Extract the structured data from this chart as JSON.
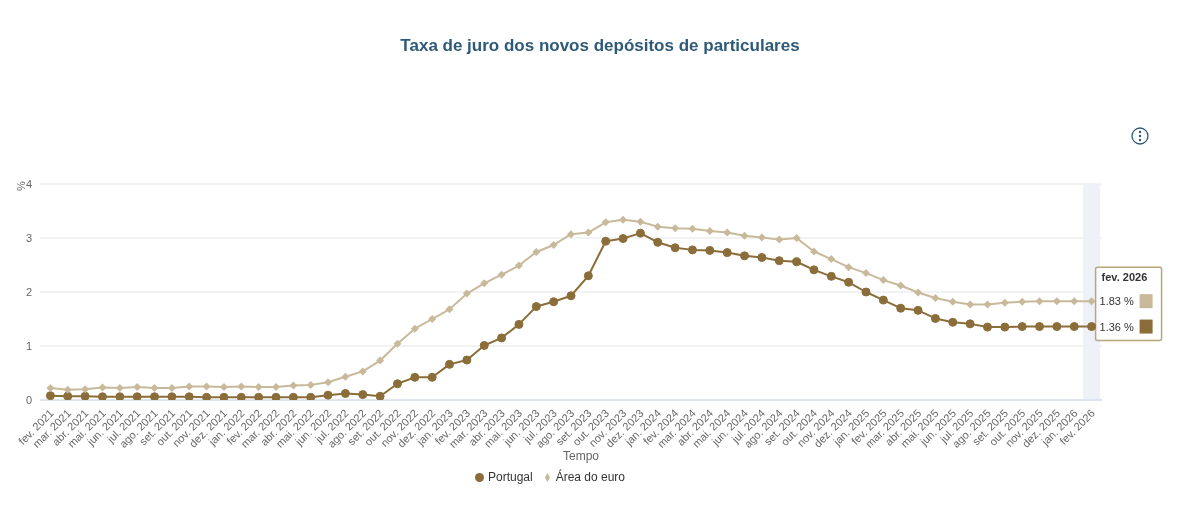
{
  "chart_data": {
    "type": "line",
    "title": "Taxa de juro dos novos depósitos de particulares",
    "xlabel": "Tempo",
    "ylabel": "%",
    "categories": [
      "fev. 2021",
      "mar. 2021",
      "abr. 2021",
      "mai. 2021",
      "jun. 2021",
      "jul. 2021",
      "ago. 2021",
      "set. 2021",
      "out. 2021",
      "nov. 2021",
      "dez. 2021",
      "jan. 2022",
      "fev. 2022",
      "mar. 2022",
      "abr. 2022",
      "mai. 2022",
      "jun. 2022",
      "jul. 2022",
      "ago. 2022",
      "set. 2022",
      "out. 2022",
      "nov. 2022",
      "dez. 2022",
      "jan. 2023",
      "fev. 2023",
      "mar. 2023",
      "abr. 2023",
      "mai. 2023",
      "jun. 2023",
      "jul. 2023",
      "ago. 2023",
      "set. 2023",
      "out. 2023",
      "nov. 2023",
      "dez. 2023",
      "jan. 2024",
      "fev. 2024",
      "mar. 2024",
      "abr. 2024",
      "mai. 2024",
      "jun. 2024",
      "jul. 2024",
      "ago. 2024",
      "set. 2024",
      "out. 2024",
      "nov. 2024",
      "dez. 2024",
      "jan. 2025",
      "fev. 2025",
      "mar. 2025",
      "abr. 2025",
      "mai. 2025",
      "jun. 2025",
      "jul. 2025",
      "ago. 2025",
      "set. 2025",
      "out. 2025",
      "nov. 2025",
      "dez. 2025",
      "jan. 2026",
      "fev. 2026"
    ],
    "series": [
      {
        "name": "Portugal",
        "color": "#8b6d3a",
        "marker": "circle",
        "values": [
          0.08,
          0.07,
          0.07,
          0.06,
          0.06,
          0.06,
          0.06,
          0.06,
          0.06,
          0.05,
          0.05,
          0.05,
          0.05,
          0.05,
          0.05,
          0.05,
          0.09,
          0.12,
          0.1,
          0.07,
          0.3,
          0.42,
          0.42,
          0.66,
          0.74,
          1.01,
          1.15,
          1.4,
          1.73,
          1.82,
          1.93,
          2.3,
          2.94,
          2.99,
          3.09,
          2.92,
          2.82,
          2.78,
          2.77,
          2.73,
          2.67,
          2.64,
          2.58,
          2.56,
          2.41,
          2.29,
          2.18,
          2.0,
          1.85,
          1.7,
          1.66,
          1.51,
          1.44,
          1.41,
          1.35,
          1.35,
          1.36,
          1.36,
          1.36,
          1.36,
          1.36
        ],
        "value_labels": [
          null,
          null,
          null,
          null,
          null,
          null,
          null,
          null,
          null,
          null,
          null,
          null,
          null,
          null,
          null,
          null,
          null,
          null,
          null,
          null,
          null,
          null,
          null,
          null,
          null,
          null,
          null,
          null,
          null,
          null,
          null,
          null,
          null,
          null,
          null,
          null,
          null,
          null,
          null,
          null,
          null,
          null,
          null,
          null,
          null,
          null,
          null,
          null,
          null,
          null,
          null,
          null,
          null,
          null,
          null,
          null,
          null,
          null,
          null,
          null,
          "1.36 %"
        ]
      },
      {
        "name": "Área do euro",
        "color": "#c8b99a",
        "marker": "diamond",
        "values": [
          0.22,
          0.19,
          0.2,
          0.23,
          0.22,
          0.24,
          0.22,
          0.22,
          0.25,
          0.25,
          0.24,
          0.25,
          0.24,
          0.24,
          0.27,
          0.28,
          0.33,
          0.43,
          0.53,
          0.73,
          1.04,
          1.32,
          1.5,
          1.68,
          1.97,
          2.16,
          2.32,
          2.49,
          2.74,
          2.87,
          3.07,
          3.1,
          3.29,
          3.34,
          3.3,
          3.21,
          3.18,
          3.17,
          3.13,
          3.1,
          3.04,
          3.01,
          2.97,
          3.0,
          2.75,
          2.61,
          2.46,
          2.35,
          2.22,
          2.12,
          1.99,
          1.89,
          1.82,
          1.77,
          1.77,
          1.8,
          1.82,
          1.83,
          1.83,
          1.83,
          1.83
        ],
        "value_labels": [
          null,
          null,
          null,
          null,
          null,
          null,
          null,
          null,
          null,
          null,
          null,
          null,
          null,
          null,
          null,
          null,
          null,
          null,
          null,
          null,
          null,
          null,
          null,
          null,
          null,
          null,
          null,
          null,
          null,
          null,
          null,
          null,
          null,
          null,
          null,
          null,
          null,
          null,
          null,
          null,
          null,
          null,
          null,
          null,
          null,
          null,
          null,
          null,
          null,
          null,
          null,
          null,
          null,
          null,
          null,
          null,
          null,
          null,
          null,
          null,
          "1.83 %"
        ]
      }
    ],
    "annotations": [
      "fev. 2026"
    ],
    "bands": [
      {
        "axis": "x",
        "from": "fev. 2026",
        "to": "fev. 2026",
        "color": "#eef2f8"
      }
    ],
    "ylim": [
      0,
      4
    ],
    "yticks": [
      0,
      1,
      2,
      3,
      4
    ],
    "grid": "y",
    "legend": "bottom"
  }
}
